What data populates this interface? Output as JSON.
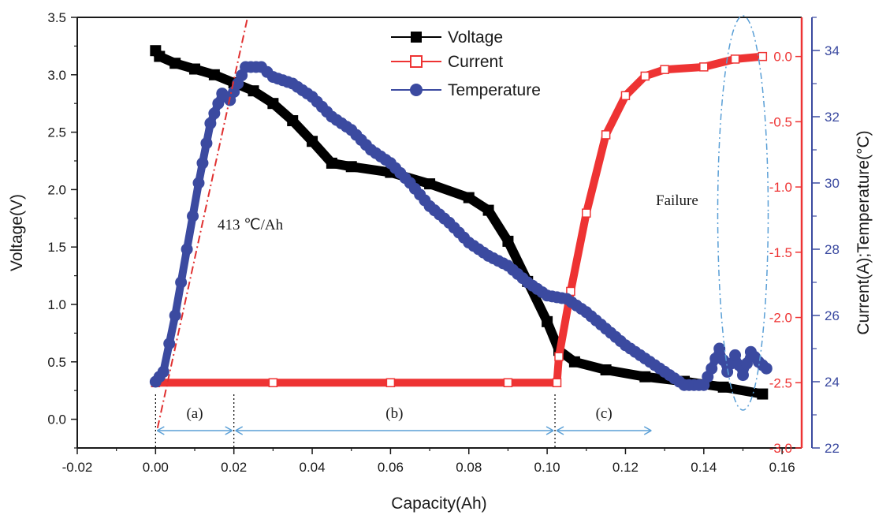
{
  "chart_data": {
    "type": "line",
    "xlabel": "Capacity(Ah)",
    "ylabel_left": "Voltage(V)",
    "ylabel_right": "Current(A);Temperature(°C)",
    "xlim": [
      -0.02,
      0.165
    ],
    "x_ticks": [
      "-0.02",
      "0.00",
      "0.02",
      "0.04",
      "0.06",
      "0.08",
      "0.10",
      "0.12",
      "0.14",
      "0.16"
    ],
    "ylim_voltage": [
      -0.25,
      3.5
    ],
    "voltage_ticks": [
      "0.0",
      "0.5",
      "1.0",
      "1.5",
      "2.0",
      "2.5",
      "3.0",
      "3.5"
    ],
    "ylim_current": [
      -3.0,
      0.3
    ],
    "current_ticks": [
      "0.0",
      "-0.5",
      "-1.0",
      "-1.5",
      "-2.0",
      "-2.5",
      "-3.0"
    ],
    "ylim_temperature": [
      22,
      35
    ],
    "temperature_ticks": [
      "34",
      "32",
      "30",
      "28",
      "26",
      "24",
      "22"
    ],
    "colors": {
      "voltage": "#000000",
      "current": "#ee3333",
      "temperature": "#3b4aa0",
      "annotation": "#5a9fd6",
      "fit_line": "#e03030"
    },
    "legend": {
      "position": "top-center",
      "entries": [
        {
          "label": "Voltage",
          "marker": "filled-square"
        },
        {
          "label": "Current",
          "marker": "open-square"
        },
        {
          "label": "Temperature",
          "marker": "filled-circle"
        }
      ]
    },
    "series": [
      {
        "name": "Voltage",
        "axis": "voltage",
        "points": [
          [
            0.0,
            3.21
          ],
          [
            0.001,
            3.16
          ],
          [
            0.005,
            3.1
          ],
          [
            0.01,
            3.05
          ],
          [
            0.015,
            3.0
          ],
          [
            0.02,
            2.93
          ],
          [
            0.025,
            2.86
          ],
          [
            0.03,
            2.75
          ],
          [
            0.035,
            2.6
          ],
          [
            0.04,
            2.42
          ],
          [
            0.045,
            2.23
          ],
          [
            0.05,
            2.2
          ],
          [
            0.06,
            2.15
          ],
          [
            0.07,
            2.05
          ],
          [
            0.08,
            1.93
          ],
          [
            0.085,
            1.82
          ],
          [
            0.09,
            1.55
          ],
          [
            0.095,
            1.2
          ],
          [
            0.1,
            0.85
          ],
          [
            0.103,
            0.6
          ],
          [
            0.107,
            0.5
          ],
          [
            0.115,
            0.43
          ],
          [
            0.125,
            0.37
          ],
          [
            0.135,
            0.33
          ],
          [
            0.145,
            0.28
          ],
          [
            0.155,
            0.22
          ]
        ]
      },
      {
        "name": "Current",
        "axis": "current",
        "points": [
          [
            0.0,
            -2.5
          ],
          [
            0.03,
            -2.5
          ],
          [
            0.06,
            -2.5
          ],
          [
            0.09,
            -2.5
          ],
          [
            0.1025,
            -2.5
          ],
          [
            0.103,
            -2.3
          ],
          [
            0.106,
            -1.8
          ],
          [
            0.11,
            -1.2
          ],
          [
            0.115,
            -0.6
          ],
          [
            0.12,
            -0.3
          ],
          [
            0.125,
            -0.15
          ],
          [
            0.13,
            -0.1
          ],
          [
            0.14,
            -0.08
          ],
          [
            0.148,
            -0.02
          ],
          [
            0.155,
            0.0
          ]
        ]
      },
      {
        "name": "Temperature",
        "axis": "temperature",
        "points": [
          [
            0.0,
            24.0
          ],
          [
            0.002,
            24.3
          ],
          [
            0.005,
            26.0
          ],
          [
            0.008,
            28.0
          ],
          [
            0.011,
            30.0
          ],
          [
            0.014,
            31.8
          ],
          [
            0.017,
            32.7
          ],
          [
            0.019,
            32.5
          ],
          [
            0.021,
            33.0
          ],
          [
            0.023,
            33.5
          ],
          [
            0.027,
            33.5
          ],
          [
            0.03,
            33.2
          ],
          [
            0.035,
            33.0
          ],
          [
            0.04,
            32.6
          ],
          [
            0.045,
            32.0
          ],
          [
            0.05,
            31.6
          ],
          [
            0.055,
            31.0
          ],
          [
            0.06,
            30.6
          ],
          [
            0.065,
            30.0
          ],
          [
            0.07,
            29.3
          ],
          [
            0.075,
            28.8
          ],
          [
            0.08,
            28.2
          ],
          [
            0.085,
            27.8
          ],
          [
            0.09,
            27.5
          ],
          [
            0.095,
            27.0
          ],
          [
            0.1,
            26.6
          ],
          [
            0.105,
            26.5
          ],
          [
            0.11,
            26.1
          ],
          [
            0.115,
            25.6
          ],
          [
            0.12,
            25.1
          ],
          [
            0.125,
            24.7
          ],
          [
            0.13,
            24.3
          ],
          [
            0.135,
            23.9
          ],
          [
            0.14,
            23.9
          ],
          [
            0.142,
            24.4
          ],
          [
            0.144,
            25.0
          ],
          [
            0.146,
            24.3
          ],
          [
            0.148,
            24.8
          ],
          [
            0.15,
            24.2
          ],
          [
            0.152,
            24.9
          ],
          [
            0.154,
            24.6
          ],
          [
            0.156,
            24.4
          ]
        ]
      }
    ],
    "annotations": {
      "slope_label": "413 ℃/Ah",
      "failure_label": "Failure",
      "regions": [
        {
          "label": "(a)",
          "x_start": 0.0,
          "x_end": 0.02
        },
        {
          "label": "(b)",
          "x_start": 0.02,
          "x_end": 0.102
        },
        {
          "label": "(c)",
          "x_start": 0.102,
          "x_end": 0.127
        }
      ]
    }
  }
}
